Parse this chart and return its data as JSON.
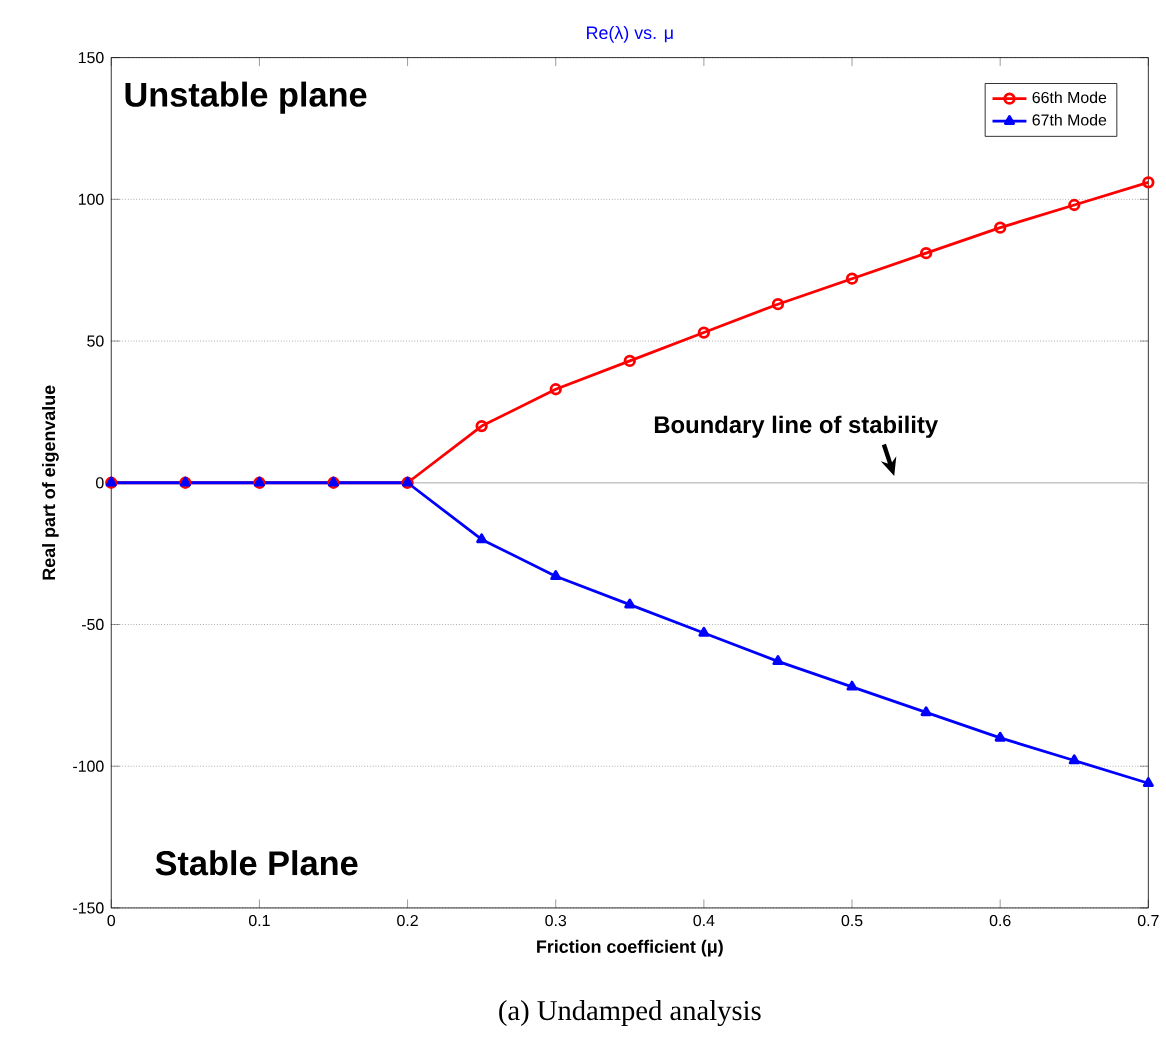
{
  "chart_data": {
    "type": "line",
    "title": "Re(λ) vs. μ",
    "xlabel": "Friction coefficient (μ)",
    "ylabel": "Real part of eigenvalue",
    "x": [
      0,
      0.05,
      0.1,
      0.15,
      0.2,
      0.25,
      0.3,
      0.35,
      0.4,
      0.45,
      0.5,
      0.55,
      0.6,
      0.65,
      0.7
    ],
    "series": [
      {
        "name": "66th Mode",
        "color": "#ff0000",
        "marker": "circle",
        "values": [
          0,
          0,
          0,
          0,
          0,
          20,
          33,
          43,
          53,
          63,
          72,
          81,
          90,
          98,
          106
        ]
      },
      {
        "name": "67th Mode",
        "color": "#0000ff",
        "marker": "triangle",
        "values": [
          0,
          0,
          0,
          0,
          0,
          -20,
          -33,
          -43,
          -53,
          -63,
          -72,
          -81,
          -90,
          -98,
          -106
        ]
      }
    ],
    "xlim": [
      0,
      0.7
    ],
    "ylim": [
      -150,
      150
    ],
    "xticks": [
      0,
      0.1,
      0.2,
      0.3,
      0.4,
      0.5,
      0.6,
      0.7
    ],
    "yticks": [
      -150,
      -100,
      -50,
      0,
      50,
      100,
      150
    ],
    "grid": "y",
    "legend": "top right",
    "ref_lines": [
      {
        "axis": "y",
        "value": 0,
        "label": "Boundary line of stability",
        "color": "#c8c8c8"
      }
    ],
    "annotations": [
      "Unstable plane",
      "Stable Plane",
      "(a) Undamped analysis"
    ]
  }
}
